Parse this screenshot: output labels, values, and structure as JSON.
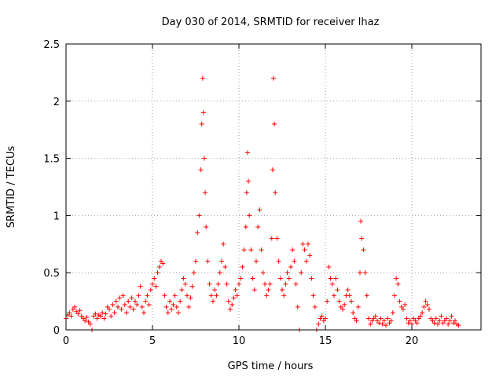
{
  "chart_data": {
    "type": "scatter",
    "title": "Day 030 of 2014, SRMTID for receiver lhaz",
    "xlabel": "GPS time / hours",
    "ylabel": "SRMTID / TECUs",
    "xlim": [
      0,
      24
    ],
    "ylim": [
      0,
      2.5
    ],
    "xticks": [
      0,
      5,
      10,
      15,
      20
    ],
    "yticks": [
      0,
      0.5,
      1,
      1.5,
      2,
      2.5
    ],
    "xtick_labels": [
      "0",
      "5",
      "10",
      "15",
      "20"
    ],
    "ytick_labels": [
      "0",
      "0.5",
      "1",
      "1.5",
      "2",
      "2.5"
    ],
    "grid": true,
    "marker": "+",
    "series": [
      {
        "name": "SRMTID",
        "color": "#ff0000",
        "points": [
          [
            0.0,
            0.1
          ],
          [
            0.1,
            0.13
          ],
          [
            0.2,
            0.15
          ],
          [
            0.3,
            0.12
          ],
          [
            0.4,
            0.18
          ],
          [
            0.5,
            0.2
          ],
          [
            0.6,
            0.16
          ],
          [
            0.7,
            0.14
          ],
          [
            0.8,
            0.17
          ],
          [
            0.9,
            0.12
          ],
          [
            1.0,
            0.1
          ],
          [
            1.1,
            0.08
          ],
          [
            1.2,
            0.11
          ],
          [
            1.3,
            0.07
          ],
          [
            1.4,
            0.05
          ],
          [
            1.5,
            0.0
          ],
          [
            1.6,
            0.12
          ],
          [
            1.7,
            0.14
          ],
          [
            1.8,
            0.1
          ],
          [
            1.9,
            0.13
          ],
          [
            2.0,
            0.12
          ],
          [
            2.1,
            0.15
          ],
          [
            2.2,
            0.1
          ],
          [
            2.3,
            0.14
          ],
          [
            2.4,
            0.2
          ],
          [
            2.5,
            0.18
          ],
          [
            2.6,
            0.12
          ],
          [
            2.7,
            0.22
          ],
          [
            2.8,
            0.15
          ],
          [
            2.9,
            0.25
          ],
          [
            3.0,
            0.2
          ],
          [
            3.1,
            0.28
          ],
          [
            3.2,
            0.18
          ],
          [
            3.3,
            0.3
          ],
          [
            3.4,
            0.22
          ],
          [
            3.5,
            0.15
          ],
          [
            3.6,
            0.25
          ],
          [
            3.7,
            0.2
          ],
          [
            3.8,
            0.28
          ],
          [
            3.9,
            0.18
          ],
          [
            4.0,
            0.25
          ],
          [
            4.1,
            0.22
          ],
          [
            4.2,
            0.3
          ],
          [
            4.3,
            0.38
          ],
          [
            4.4,
            0.2
          ],
          [
            4.5,
            0.15
          ],
          [
            4.6,
            0.25
          ],
          [
            4.7,
            0.3
          ],
          [
            4.8,
            0.22
          ],
          [
            4.9,
            0.35
          ],
          [
            5.0,
            0.4
          ],
          [
            5.1,
            0.45
          ],
          [
            5.2,
            0.38
          ],
          [
            5.3,
            0.5
          ],
          [
            5.4,
            0.55
          ],
          [
            5.5,
            0.6
          ],
          [
            5.6,
            0.58
          ],
          [
            5.7,
            0.3
          ],
          [
            5.8,
            0.2
          ],
          [
            5.9,
            0.15
          ],
          [
            6.0,
            0.25
          ],
          [
            6.1,
            0.18
          ],
          [
            6.2,
            0.22
          ],
          [
            6.3,
            0.3
          ],
          [
            6.4,
            0.2
          ],
          [
            6.5,
            0.15
          ],
          [
            6.6,
            0.25
          ],
          [
            6.7,
            0.35
          ],
          [
            6.8,
            0.45
          ],
          [
            6.9,
            0.4
          ],
          [
            7.0,
            0.3
          ],
          [
            7.1,
            0.2
          ],
          [
            7.2,
            0.28
          ],
          [
            7.3,
            0.38
          ],
          [
            7.4,
            0.5
          ],
          [
            7.5,
            0.6
          ],
          [
            7.6,
            0.85
          ],
          [
            7.7,
            1.0
          ],
          [
            7.8,
            1.4
          ],
          [
            7.85,
            1.8
          ],
          [
            7.9,
            2.2
          ],
          [
            7.95,
            1.9
          ],
          [
            8.0,
            1.5
          ],
          [
            8.05,
            1.2
          ],
          [
            8.1,
            0.9
          ],
          [
            8.2,
            0.6
          ],
          [
            8.3,
            0.4
          ],
          [
            8.4,
            0.3
          ],
          [
            8.5,
            0.25
          ],
          [
            8.6,
            0.35
          ],
          [
            8.7,
            0.3
          ],
          [
            8.8,
            0.4
          ],
          [
            8.9,
            0.5
          ],
          [
            9.0,
            0.6
          ],
          [
            9.1,
            0.75
          ],
          [
            9.2,
            0.55
          ],
          [
            9.3,
            0.4
          ],
          [
            9.4,
            0.25
          ],
          [
            9.5,
            0.18
          ],
          [
            9.6,
            0.22
          ],
          [
            9.7,
            0.28
          ],
          [
            9.8,
            0.35
          ],
          [
            9.9,
            0.3
          ],
          [
            10.0,
            0.4
          ],
          [
            10.1,
            0.45
          ],
          [
            10.2,
            0.55
          ],
          [
            10.3,
            0.7
          ],
          [
            10.4,
            0.9
          ],
          [
            10.45,
            1.2
          ],
          [
            10.5,
            1.55
          ],
          [
            10.55,
            1.3
          ],
          [
            10.6,
            1.0
          ],
          [
            10.7,
            0.7
          ],
          [
            10.8,
            0.45
          ],
          [
            10.9,
            0.35
          ],
          [
            11.0,
            0.6
          ],
          [
            11.1,
            0.9
          ],
          [
            11.2,
            1.05
          ],
          [
            11.3,
            0.7
          ],
          [
            11.4,
            0.5
          ],
          [
            11.5,
            0.4
          ],
          [
            11.6,
            0.3
          ],
          [
            11.7,
            0.35
          ],
          [
            11.8,
            0.4
          ],
          [
            11.9,
            0.8
          ],
          [
            11.95,
            1.4
          ],
          [
            12.0,
            2.2
          ],
          [
            12.05,
            1.8
          ],
          [
            12.1,
            1.2
          ],
          [
            12.2,
            0.8
          ],
          [
            12.3,
            0.6
          ],
          [
            12.4,
            0.45
          ],
          [
            12.5,
            0.35
          ],
          [
            12.6,
            0.3
          ],
          [
            12.7,
            0.4
          ],
          [
            12.8,
            0.5
          ],
          [
            12.9,
            0.45
          ],
          [
            13.0,
            0.55
          ],
          [
            13.1,
            0.7
          ],
          [
            13.2,
            0.6
          ],
          [
            13.3,
            0.4
          ],
          [
            13.4,
            0.2
          ],
          [
            13.5,
            0.0
          ],
          [
            13.6,
            0.5
          ],
          [
            13.7,
            0.75
          ],
          [
            13.8,
            0.7
          ],
          [
            13.9,
            0.6
          ],
          [
            14.0,
            0.75
          ],
          [
            14.1,
            0.65
          ],
          [
            14.2,
            0.45
          ],
          [
            14.3,
            0.3
          ],
          [
            14.4,
            0.2
          ],
          [
            14.5,
            0.0
          ],
          [
            14.6,
            0.05
          ],
          [
            14.7,
            0.1
          ],
          [
            14.8,
            0.12
          ],
          [
            14.9,
            0.08
          ],
          [
            15.0,
            0.1
          ],
          [
            15.1,
            0.25
          ],
          [
            15.2,
            0.55
          ],
          [
            15.3,
            0.45
          ],
          [
            15.4,
            0.4
          ],
          [
            15.5,
            0.3
          ],
          [
            15.6,
            0.45
          ],
          [
            15.7,
            0.35
          ],
          [
            15.8,
            0.25
          ],
          [
            15.9,
            0.2
          ],
          [
            16.0,
            0.18
          ],
          [
            16.1,
            0.22
          ],
          [
            16.2,
            0.3
          ],
          [
            16.3,
            0.35
          ],
          [
            16.4,
            0.3
          ],
          [
            16.5,
            0.25
          ],
          [
            16.6,
            0.15
          ],
          [
            16.7,
            0.1
          ],
          [
            16.8,
            0.08
          ],
          [
            16.9,
            0.2
          ],
          [
            17.0,
            0.5
          ],
          [
            17.05,
            0.95
          ],
          [
            17.1,
            0.8
          ],
          [
            17.2,
            0.7
          ],
          [
            17.3,
            0.5
          ],
          [
            17.4,
            0.3
          ],
          [
            17.5,
            0.1
          ],
          [
            17.6,
            0.05
          ],
          [
            17.7,
            0.08
          ],
          [
            17.8,
            0.1
          ],
          [
            17.9,
            0.12
          ],
          [
            18.0,
            0.08
          ],
          [
            18.1,
            0.06
          ],
          [
            18.2,
            0.1
          ],
          [
            18.3,
            0.05
          ],
          [
            18.4,
            0.08
          ],
          [
            18.5,
            0.04
          ],
          [
            18.6,
            0.1
          ],
          [
            18.7,
            0.06
          ],
          [
            18.8,
            0.08
          ],
          [
            18.9,
            0.15
          ],
          [
            19.0,
            0.3
          ],
          [
            19.1,
            0.45
          ],
          [
            19.2,
            0.4
          ],
          [
            19.3,
            0.25
          ],
          [
            19.4,
            0.2
          ],
          [
            19.5,
            0.18
          ],
          [
            19.6,
            0.22
          ],
          [
            19.7,
            0.1
          ],
          [
            19.8,
            0.06
          ],
          [
            19.9,
            0.08
          ],
          [
            20.0,
            0.05
          ],
          [
            20.1,
            0.1
          ],
          [
            20.2,
            0.08
          ],
          [
            20.3,
            0.06
          ],
          [
            20.4,
            0.1
          ],
          [
            20.5,
            0.12
          ],
          [
            20.6,
            0.15
          ],
          [
            20.7,
            0.2
          ],
          [
            20.8,
            0.25
          ],
          [
            20.9,
            0.22
          ],
          [
            21.0,
            0.18
          ],
          [
            21.1,
            0.1
          ],
          [
            21.2,
            0.08
          ],
          [
            21.3,
            0.06
          ],
          [
            21.4,
            0.1
          ],
          [
            21.5,
            0.05
          ],
          [
            21.6,
            0.08
          ],
          [
            21.7,
            0.12
          ],
          [
            21.8,
            0.06
          ],
          [
            21.9,
            0.08
          ],
          [
            22.0,
            0.1
          ],
          [
            22.1,
            0.05
          ],
          [
            22.2,
            0.08
          ],
          [
            22.3,
            0.12
          ],
          [
            22.4,
            0.06
          ],
          [
            22.5,
            0.08
          ],
          [
            22.6,
            0.05
          ],
          [
            22.7,
            0.04
          ]
        ]
      }
    ]
  }
}
